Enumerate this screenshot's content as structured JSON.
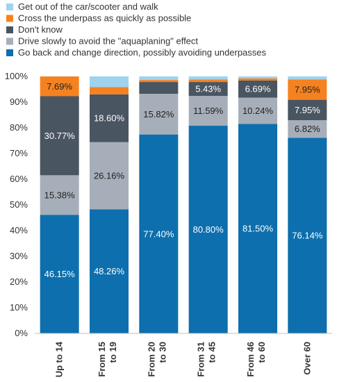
{
  "chart_data": {
    "type": "bar",
    "stacked": true,
    "categories": [
      [
        "Up to 14"
      ],
      [
        "From 15",
        "to 19"
      ],
      [
        "From 20",
        "to 30"
      ],
      [
        "From 31",
        "to 45"
      ],
      [
        "From 46",
        "to 60"
      ],
      [
        "Over 60"
      ]
    ],
    "series": [
      {
        "name": "Go back and change direction, possibly avoiding underpasses",
        "color": "#0d6fad",
        "values": [
          46.15,
          48.26,
          77.4,
          80.8,
          81.5,
          76.14
        ],
        "labels": [
          "46.15%",
          "48.26%",
          "77.40%",
          "80.80%",
          "81.50%",
          "76.14%"
        ],
        "label_color": "#ffffff"
      },
      {
        "name": "Drive slowly to avoid the \"aquaplaning\" effect",
        "color": "#a6aeb9",
        "values": [
          15.38,
          26.16,
          15.82,
          11.59,
          10.24,
          6.82
        ],
        "labels": [
          "15.38%",
          "26.16%",
          "15.82%",
          "11.59%",
          "10.24%",
          "6.82%"
        ],
        "label_color": "#222222"
      },
      {
        "name": "Don't know",
        "color": "#4a5562",
        "values": [
          30.77,
          18.6,
          4.6,
          5.43,
          6.69,
          7.95
        ],
        "labels": [
          "30.77%",
          "18.60%",
          "",
          "5.43%",
          "6.69%",
          "7.95%"
        ],
        "label_color": "#ffffff"
      },
      {
        "name": "Cross the underpass as quickly as possible",
        "color": "#f58220",
        "values": [
          7.69,
          2.8,
          0.8,
          1.0,
          0.8,
          7.95
        ],
        "labels": [
          "7.69%",
          "",
          "",
          "",
          "",
          "7.95%"
        ],
        "label_color": "#222222"
      },
      {
        "name": "Get out of the car/scooter and walk",
        "color": "#9fd3ee",
        "values": [
          0,
          4.18,
          1.38,
          1.18,
          0.77,
          1.14
        ],
        "labels": [
          "",
          "",
          "",
          "",
          "",
          ""
        ],
        "label_color": "#222222"
      }
    ],
    "legend_order": [
      4,
      3,
      2,
      1,
      0
    ],
    "legend_position": "top",
    "ylim": [
      0,
      100
    ],
    "yticks": [
      "0%",
      "10%",
      "20%",
      "30%",
      "40%",
      "50%",
      "60%",
      "70%",
      "80%",
      "90%",
      "100%"
    ],
    "title": "",
    "xlabel": "",
    "ylabel": "",
    "grid": false
  }
}
